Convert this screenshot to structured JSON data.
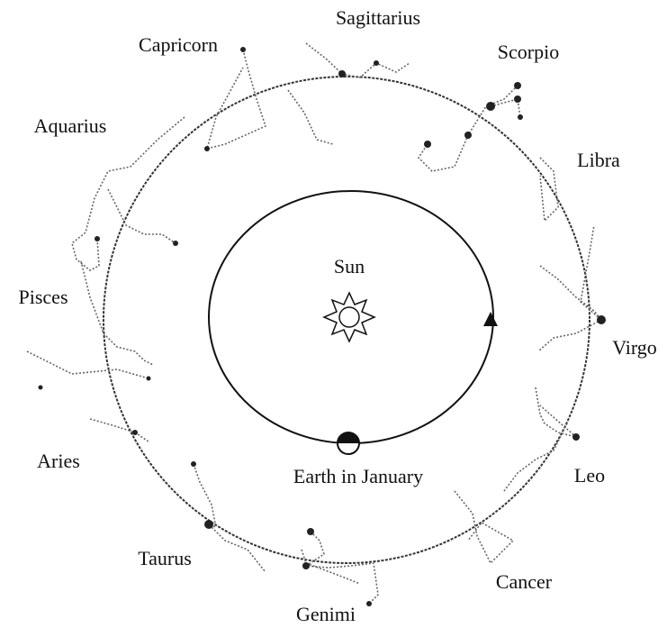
{
  "sun": {
    "label": "Sun"
  },
  "earth": {
    "label": "Earth in January"
  },
  "constellations": [
    "Sagittarius",
    "Capricorn",
    "Scorpio",
    "Aquarius",
    "Libra",
    "Pisces",
    "Virgo",
    "Aries",
    "Leo",
    "Taurus",
    "Cancer",
    "Genimi"
  ]
}
